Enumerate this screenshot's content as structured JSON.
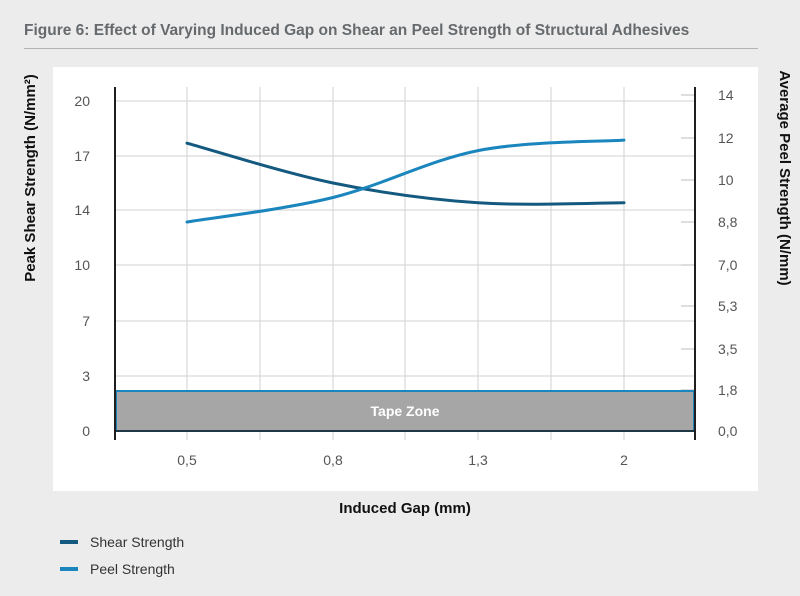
{
  "chart_data": {
    "type": "line",
    "title": "Figure 6: Effect of Varying Induced Gap on Shear an Peel Strength of Structural Adhesives",
    "xlabel": "Induced Gap (mm)",
    "ylabel": "Peak Shear Strength (N/mm²)",
    "y2label": "Average Peel Strength (N/mm)",
    "x_ticks": [
      "0,5",
      "0,8",
      "1,3",
      "2"
    ],
    "y_ticks": [
      "20",
      "17",
      "14",
      "10",
      "7",
      "3",
      "0"
    ],
    "y2_ticks": [
      "14",
      "12",
      "10",
      "8,8",
      "7,0",
      "5,3",
      "3,5",
      "1,8",
      "0,0"
    ],
    "grid": true,
    "legend_position": "bottom-left",
    "series": [
      {
        "name": "Shear Strength",
        "axis": "left",
        "color": "#14597f",
        "x": [
          0.5,
          0.8,
          1.3,
          2
        ],
        "y": [
          17.7,
          15.5,
          14.4,
          14.4
        ]
      },
      {
        "name": "Peel Strength",
        "axis": "right",
        "color": "#1a86bd",
        "x": [
          0.5,
          0.8,
          1.3,
          2
        ],
        "y": [
          8.8,
          9.5,
          11.4,
          11.9
        ]
      }
    ],
    "annotations": [
      {
        "label": "Tape Zone",
        "color": "#a6a6a6",
        "border": "#1a86bd"
      }
    ]
  }
}
